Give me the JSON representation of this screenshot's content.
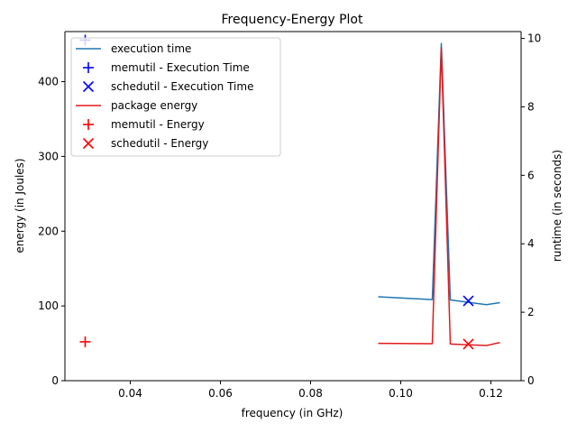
{
  "chart_data": {
    "type": "line",
    "title": "Frequency-Energy Plot",
    "xlabel": "frequency (in GHz)",
    "ylabel_left": "energy (in Joules)",
    "ylabel_right": "runtime (in seconds)",
    "xlim": [
      0.0255,
      0.1267
    ],
    "ylim_left": [
      0,
      467
    ],
    "ylim_right": [
      0,
      10.2
    ],
    "xticks": [
      "0.04",
      "0.06",
      "0.08",
      "0.10",
      "0.12"
    ],
    "xtick_values": [
      0.04,
      0.06,
      0.08,
      0.1,
      0.12
    ],
    "yticks_left": [
      "0",
      "100",
      "200",
      "300",
      "400"
    ],
    "ytick_values_left": [
      0,
      100,
      200,
      300,
      400
    ],
    "yticks_right": [
      "0",
      "2",
      "4",
      "6",
      "8",
      "10"
    ],
    "ytick_values_right": [
      0,
      2,
      4,
      6,
      8,
      10
    ],
    "legend_position": "upper-left",
    "colors": {
      "execution_time": "#1f77b4",
      "package_energy": "#e31a1c",
      "marker_blue": "#0000ff",
      "marker_red": "#ff0000"
    },
    "series": [
      {
        "name": "execution time",
        "axis": "right",
        "kind": "line",
        "x": [
          0.095,
          0.107,
          0.109,
          0.111,
          0.119,
          0.122
        ],
        "y": [
          2.45,
          2.37,
          9.85,
          2.36,
          2.22,
          2.28
        ]
      },
      {
        "name": "memutil - Execution Time",
        "axis": "right",
        "kind": "marker-plus",
        "x": [
          0.03
        ],
        "y": [
          9.95
        ]
      },
      {
        "name": "schedutil - Execution Time",
        "axis": "right",
        "kind": "marker-x",
        "x": [
          0.115
        ],
        "y": [
          2.33
        ]
      },
      {
        "name": "package energy",
        "axis": "left",
        "kind": "line",
        "x": [
          0.095,
          0.107,
          0.109,
          0.111,
          0.119,
          0.122
        ],
        "y": [
          50,
          49.5,
          445,
          49,
          47,
          51
        ]
      },
      {
        "name": "memutil - Energy",
        "axis": "left",
        "kind": "marker-plus",
        "x": [
          0.03
        ],
        "y": [
          52
        ]
      },
      {
        "name": "schedutil - Energy",
        "axis": "left",
        "kind": "marker-x",
        "x": [
          0.115
        ],
        "y": [
          49
        ]
      }
    ]
  }
}
